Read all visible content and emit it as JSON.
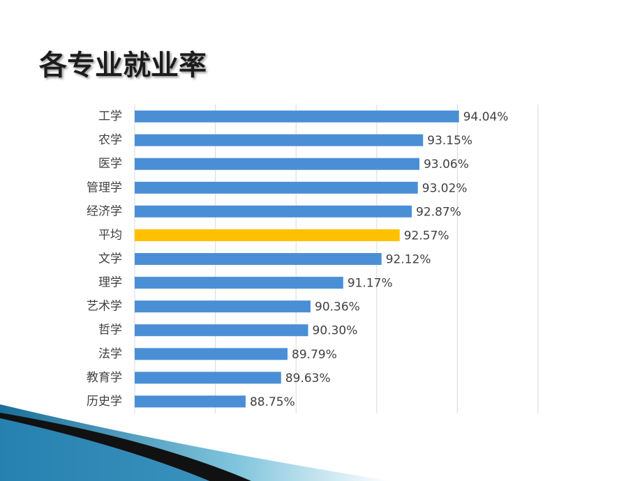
{
  "chart_data": {
    "type": "barh",
    "title": "各专业就业率",
    "categories": [
      "工学",
      "农学",
      "医学",
      "管理学",
      "经济学",
      "平均",
      "文学",
      "理学",
      "艺术学",
      "哲学",
      "法学",
      "教育学",
      "历史学"
    ],
    "values": [
      94.04,
      93.15,
      93.06,
      93.02,
      92.87,
      92.57,
      92.12,
      91.17,
      90.36,
      90.3,
      89.79,
      89.63,
      88.75
    ],
    "value_labels": [
      "94.04%",
      "93.15%",
      "93.06%",
      "93.02%",
      "92.87%",
      "92.57%",
      "92.12%",
      "91.17%",
      "90.36%",
      "90.30%",
      "89.79%",
      "89.63%",
      "88.75%"
    ],
    "colors": [
      "#4a8fd6",
      "#4a8fd6",
      "#4a8fd6",
      "#4a8fd6",
      "#4a8fd6",
      "#ffc000",
      "#4a8fd6",
      "#4a8fd6",
      "#4a8fd6",
      "#4a8fd6",
      "#4a8fd6",
      "#4a8fd6",
      "#4a8fd6"
    ],
    "xlim": [
      86,
      96
    ],
    "xticks": [
      86,
      88,
      90,
      92,
      94,
      96
    ],
    "grid": true
  }
}
